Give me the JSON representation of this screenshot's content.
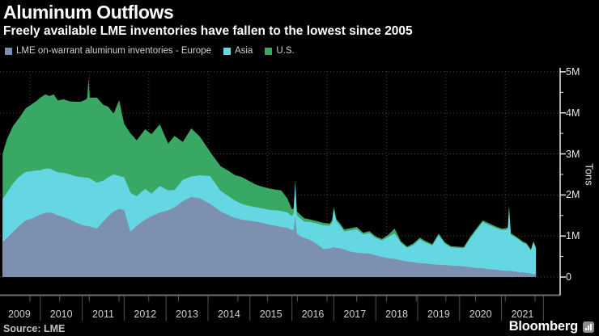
{
  "header": {
    "title": "Aluminum Outflows",
    "subtitle": "Freely available LME inventories have fallen to the lowest since 2005"
  },
  "legend": {
    "items": [
      {
        "label": "LME on-warrant aluminum inventories - Europe",
        "color": "#7d90b0"
      },
      {
        "label": "Asia",
        "color": "#64d7e3"
      },
      {
        "label": "U.S.",
        "color": "#3aa865"
      }
    ]
  },
  "footer": {
    "source": "Source: LME",
    "brand": "Bloomberg",
    "brand_icon": "bar-chart-icon"
  },
  "chart_data": {
    "type": "area",
    "stacked": true,
    "title": "Aluminum Outflows",
    "subtitle": "Freely available LME inventories have fallen to the lowest since 2005",
    "xlabel": "",
    "ylabel": "Tons",
    "background": "#000000",
    "grid": true,
    "legend_position": "top-left",
    "ylim": [
      0,
      5.3
    ],
    "y_ticks": [
      {
        "v": 0,
        "label": "0"
      },
      {
        "v": 1,
        "label": "1M"
      },
      {
        "v": 2,
        "label": "2M"
      },
      {
        "v": 3,
        "label": "3M"
      },
      {
        "v": 4,
        "label": "4M"
      },
      {
        "v": 5,
        "label": "5M"
      }
    ],
    "x_tick_labels": [
      "2009",
      "2010",
      "2011",
      "2012",
      "2013",
      "2014",
      "2015",
      "2016",
      "2017",
      "2018",
      "2019",
      "2020",
      "2021"
    ],
    "x_range": [
      2009.1,
      2021.82
    ],
    "units": "millions of tons",
    "x": [
      2009.1,
      2009.2,
      2009.35,
      2009.5,
      2009.65,
      2009.8,
      2009.92,
      2010.0,
      2010.12,
      2010.22,
      2010.32,
      2010.42,
      2010.55,
      2010.7,
      2010.85,
      2010.96,
      2011.08,
      2011.12,
      2011.15,
      2011.18,
      2011.35,
      2011.5,
      2011.62,
      2011.75,
      2011.88,
      2012.0,
      2012.15,
      2012.3,
      2012.5,
      2012.65,
      2012.85,
      2013.05,
      2013.2,
      2013.4,
      2013.6,
      2013.8,
      2014.05,
      2014.3,
      2014.5,
      2014.65,
      2014.8,
      2015.0,
      2015.15,
      2015.3,
      2015.45,
      2015.6,
      2015.75,
      2015.9,
      2016.0,
      2016.04,
      2016.08,
      2016.12,
      2016.2,
      2016.3,
      2016.45,
      2016.6,
      2016.75,
      2016.9,
      2016.96,
      2017.0,
      2017.06,
      2017.15,
      2017.25,
      2017.4,
      2017.55,
      2017.7,
      2017.85,
      2018.0,
      2018.15,
      2018.3,
      2018.45,
      2018.6,
      2018.75,
      2018.9,
      2019.05,
      2019.2,
      2019.35,
      2019.5,
      2019.65,
      2019.8,
      2019.95,
      2020.1,
      2020.25,
      2020.4,
      2020.55,
      2020.7,
      2020.85,
      2021.0,
      2021.1,
      2021.15,
      2021.18,
      2021.22,
      2021.3,
      2021.4,
      2021.5,
      2021.6,
      2021.7,
      2021.76,
      2021.82
    ],
    "series": [
      {
        "name": "Europe",
        "color": "#7d90b0",
        "values": [
          0.85,
          0.95,
          1.1,
          1.25,
          1.38,
          1.42,
          1.48,
          1.52,
          1.57,
          1.57,
          1.55,
          1.5,
          1.46,
          1.4,
          1.33,
          1.28,
          1.25,
          1.24,
          1.24,
          1.23,
          1.18,
          1.35,
          1.48,
          1.6,
          1.66,
          1.63,
          1.1,
          1.25,
          1.4,
          1.48,
          1.57,
          1.63,
          1.7,
          1.85,
          1.95,
          1.92,
          1.78,
          1.6,
          1.5,
          1.44,
          1.4,
          1.37,
          1.35,
          1.32,
          1.28,
          1.25,
          1.22,
          1.2,
          1.15,
          1.15,
          1.48,
          1.05,
          1.0,
          0.95,
          0.9,
          0.8,
          0.68,
          0.7,
          0.71,
          0.73,
          0.71,
          0.7,
          0.67,
          0.62,
          0.59,
          0.58,
          0.57,
          0.53,
          0.49,
          0.46,
          0.44,
          0.41,
          0.38,
          0.36,
          0.34,
          0.33,
          0.31,
          0.3,
          0.29,
          0.28,
          0.27,
          0.26,
          0.24,
          0.22,
          0.21,
          0.19,
          0.18,
          0.16,
          0.15,
          0.15,
          0.15,
          0.15,
          0.14,
          0.12,
          0.11,
          0.1,
          0.08,
          0.07,
          0.07
        ]
      },
      {
        "name": "Asia",
        "color": "#64d7e3",
        "values": [
          1.05,
          1.1,
          1.18,
          1.2,
          1.18,
          1.16,
          1.12,
          1.08,
          1.07,
          1.07,
          1.05,
          1.05,
          1.08,
          1.1,
          1.12,
          1.16,
          1.17,
          1.18,
          1.18,
          1.17,
          1.12,
          1.0,
          0.95,
          0.9,
          0.8,
          0.8,
          0.95,
          0.72,
          0.75,
          0.55,
          0.65,
          0.48,
          0.42,
          0.52,
          0.5,
          0.56,
          0.68,
          0.5,
          0.46,
          0.42,
          0.38,
          0.36,
          0.35,
          0.35,
          0.36,
          0.38,
          0.39,
          0.37,
          0.33,
          0.4,
          0.78,
          0.45,
          0.43,
          0.4,
          0.44,
          0.5,
          0.58,
          0.55,
          0.62,
          0.92,
          0.65,
          0.55,
          0.44,
          0.52,
          0.57,
          0.46,
          0.5,
          0.42,
          0.4,
          0.52,
          0.62,
          0.42,
          0.33,
          0.42,
          0.58,
          0.5,
          0.46,
          0.72,
          0.52,
          0.44,
          0.44,
          0.44,
          0.7,
          0.92,
          1.13,
          1.08,
          1.02,
          0.99,
          1.0,
          1.02,
          1.55,
          0.88,
          0.85,
          0.8,
          0.73,
          0.69,
          0.57,
          0.78,
          0.63
        ]
      },
      {
        "name": "U.S.",
        "color": "#3aa865",
        "values": [
          1.1,
          1.3,
          1.4,
          1.43,
          1.55,
          1.63,
          1.7,
          1.77,
          1.81,
          1.77,
          1.85,
          1.75,
          1.79,
          1.78,
          1.82,
          1.83,
          1.9,
          1.95,
          2.43,
          1.97,
          2.07,
          1.85,
          1.72,
          1.48,
          1.85,
          1.3,
          1.45,
          1.36,
          1.45,
          1.45,
          1.5,
          1.14,
          1.32,
          0.92,
          1.17,
          0.95,
          0.59,
          0.6,
          0.62,
          0.62,
          0.66,
          0.6,
          0.55,
          0.53,
          0.52,
          0.5,
          0.5,
          0.33,
          0.17,
          0.12,
          0.1,
          0.1,
          0.09,
          0.08,
          0.06,
          0.06,
          0.06,
          0.05,
          0.05,
          0.06,
          0.05,
          0.05,
          0.05,
          0.05,
          0.06,
          0.04,
          0.05,
          0.04,
          0.04,
          0.05,
          0.12,
          0.04,
          0.03,
          0.04,
          0.04,
          0.04,
          0.03,
          0.04,
          0.03,
          0.03,
          0.03,
          0.03,
          0.04,
          0.04,
          0.04,
          0.04,
          0.04,
          0.03,
          0.04,
          0.04,
          0.05,
          0.04,
          0.03,
          0.03,
          0.03,
          0.03,
          0.02,
          0.02,
          0.02
        ]
      }
    ]
  }
}
